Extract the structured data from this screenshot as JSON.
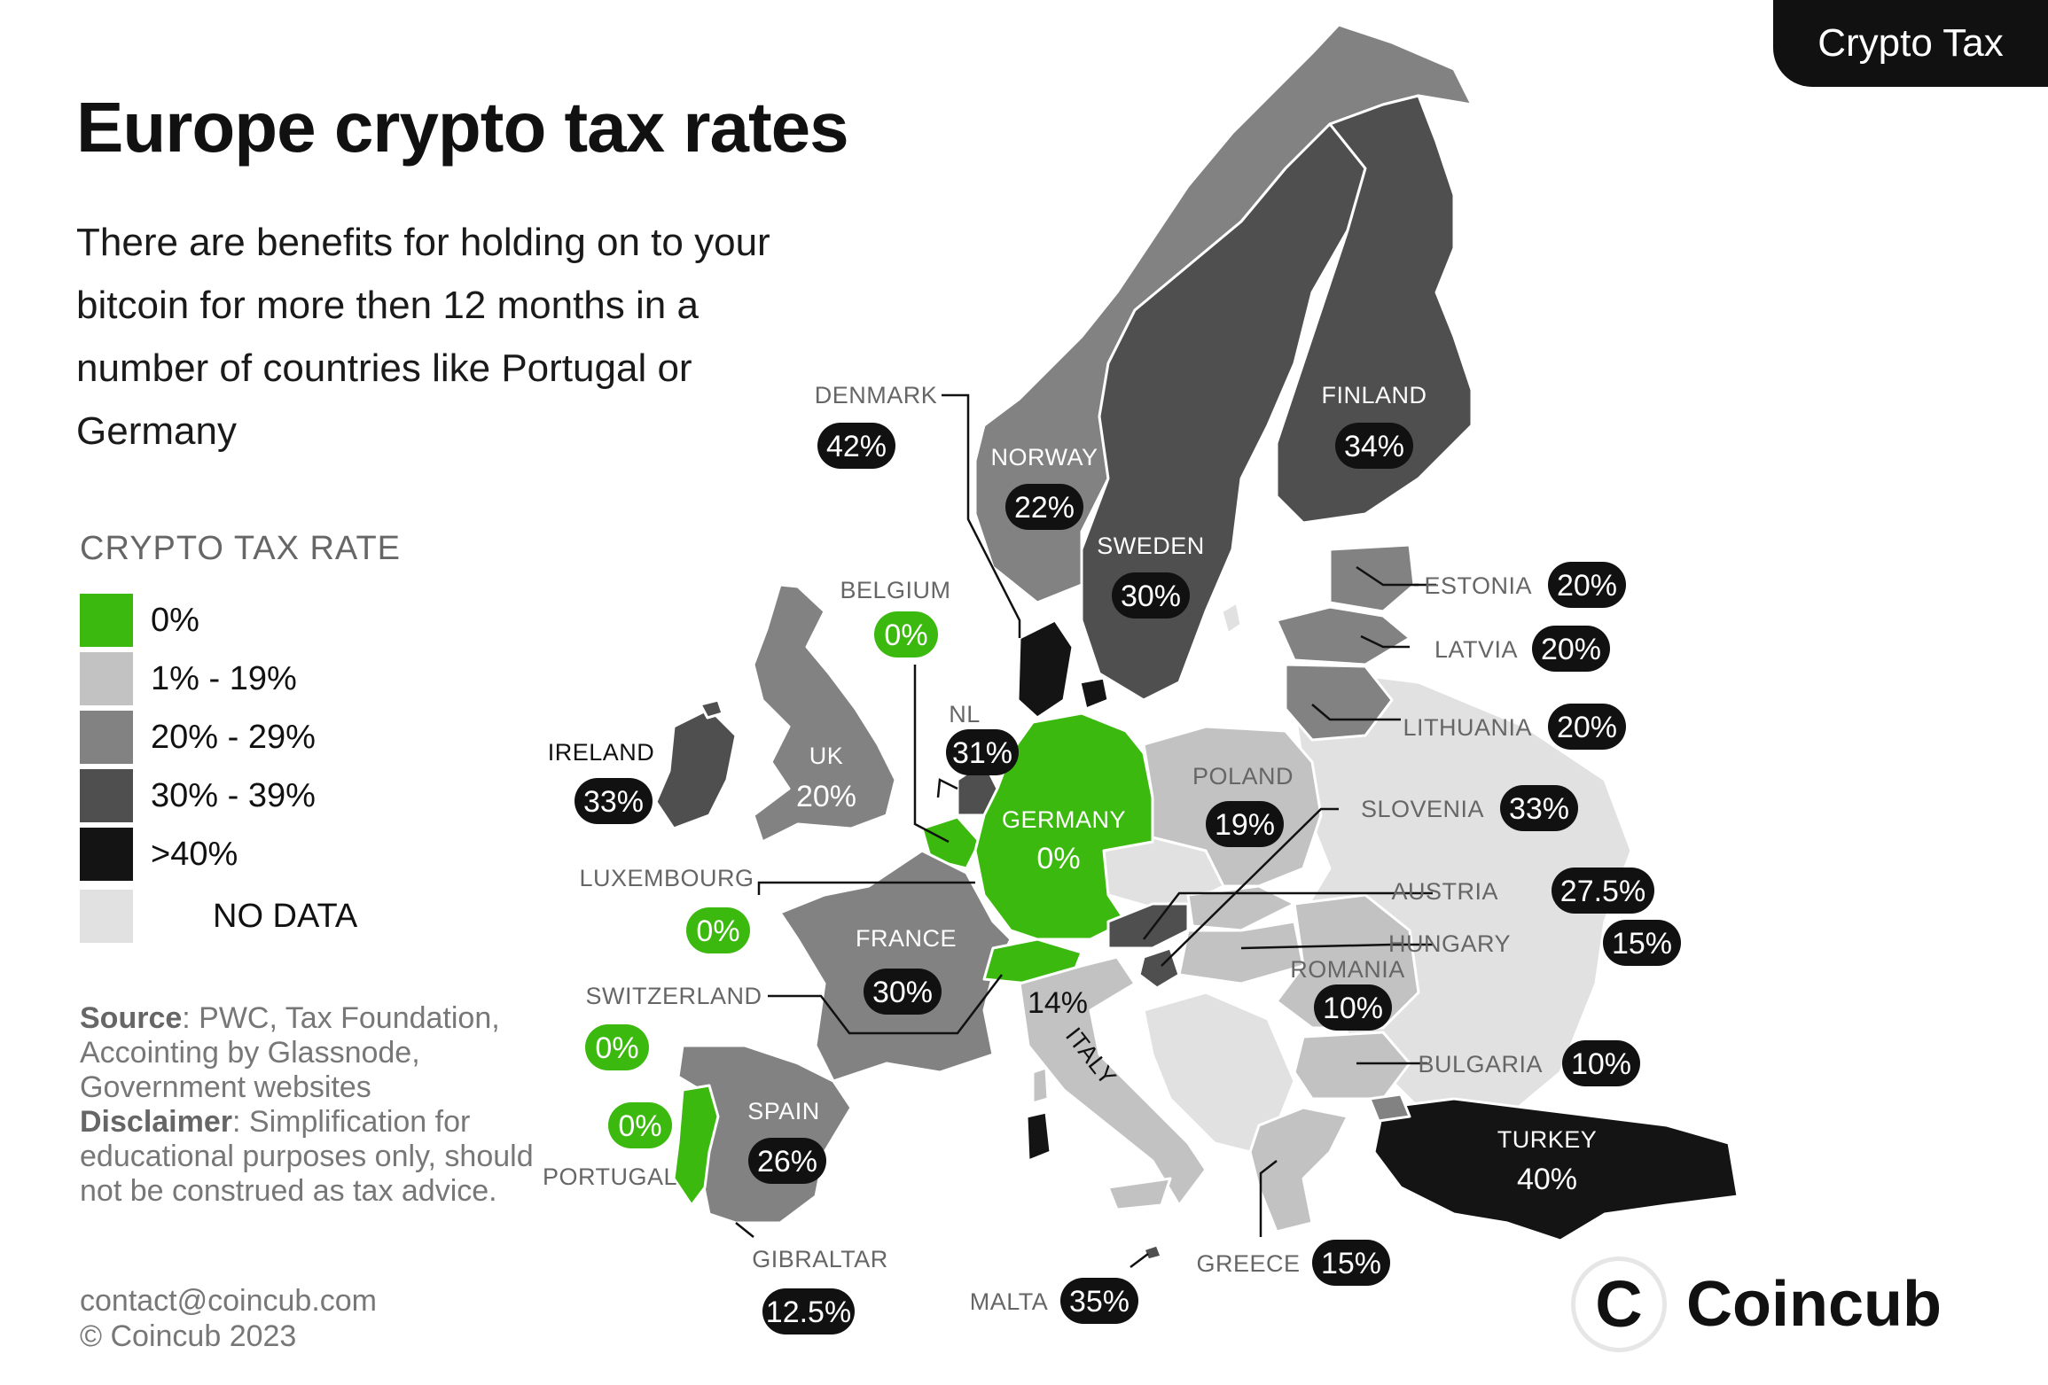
{
  "corner_tag": "Crypto Tax",
  "title": "Europe crypto tax rates",
  "subtitle": "There are benefits for holding on to your bitcoin for more then 12 months in a number of countries like Portugal or Germany",
  "legend": {
    "title": "CRYPTO TAX RATE",
    "items": [
      {
        "label": "0%",
        "color": "#3cb90f"
      },
      {
        "label": "1% - 19%",
        "color": "#c2c2c2"
      },
      {
        "label": "20% - 29%",
        "color": "#828282"
      },
      {
        "label": "30% - 39%",
        "color": "#4f4f4f"
      },
      {
        "label": ">40%",
        "color": "#141414"
      },
      {
        "label": "NO DATA",
        "color": "#e1e1e1"
      }
    ]
  },
  "source": {
    "source_label": "Source",
    "source_text": ": PWC, Tax Foundation, Accointing by Glassnode, Government websites",
    "disclaimer_label": "Disclaimer",
    "disclaimer_text": ": Simplification for educational purposes only, should not be construed as tax advice."
  },
  "contact": {
    "email": "contact@coincub.com",
    "copyright": "© Coincub 2023"
  },
  "brand": {
    "mark": "C",
    "name": "Coincub"
  },
  "countries": [
    {
      "name": "DENMARK",
      "rate": "42%"
    },
    {
      "name": "NORWAY",
      "rate": "22%"
    },
    {
      "name": "SWEDEN",
      "rate": "30%"
    },
    {
      "name": "FINLAND",
      "rate": "34%"
    },
    {
      "name": "ESTONIA",
      "rate": "20%"
    },
    {
      "name": "LATVIA",
      "rate": "20%"
    },
    {
      "name": "LITHUANIA",
      "rate": "20%"
    },
    {
      "name": "BELGIUM",
      "rate": "0%"
    },
    {
      "name": "NL",
      "rate": "31%"
    },
    {
      "name": "IRELAND",
      "rate": "33%"
    },
    {
      "name": "UK",
      "rate": "20%"
    },
    {
      "name": "GERMANY",
      "rate": "0%"
    },
    {
      "name": "POLAND",
      "rate": "19%"
    },
    {
      "name": "SLOVENIA",
      "rate": "33%"
    },
    {
      "name": "AUSTRIA",
      "rate": "27.5%"
    },
    {
      "name": "HUNGARY",
      "rate": "15%"
    },
    {
      "name": "LUXEMBOURG",
      "rate": "0%"
    },
    {
      "name": "FRANCE",
      "rate": "30%"
    },
    {
      "name": "ROMANIA",
      "rate": "10%"
    },
    {
      "name": "SWITZERLAND",
      "rate": "0%"
    },
    {
      "name": "ITALY",
      "rate": "14%"
    },
    {
      "name": "BULGARIA",
      "rate": "10%"
    },
    {
      "name": "SPAIN",
      "rate": "26%"
    },
    {
      "name": "PORTUGAL",
      "rate": "0%"
    },
    {
      "name": "TURKEY",
      "rate": "40%"
    },
    {
      "name": "GIBRALTAR",
      "rate": "12.5%"
    },
    {
      "name": "MALTA",
      "rate": "35%"
    },
    {
      "name": "GREECE",
      "rate": "15%"
    }
  ]
}
